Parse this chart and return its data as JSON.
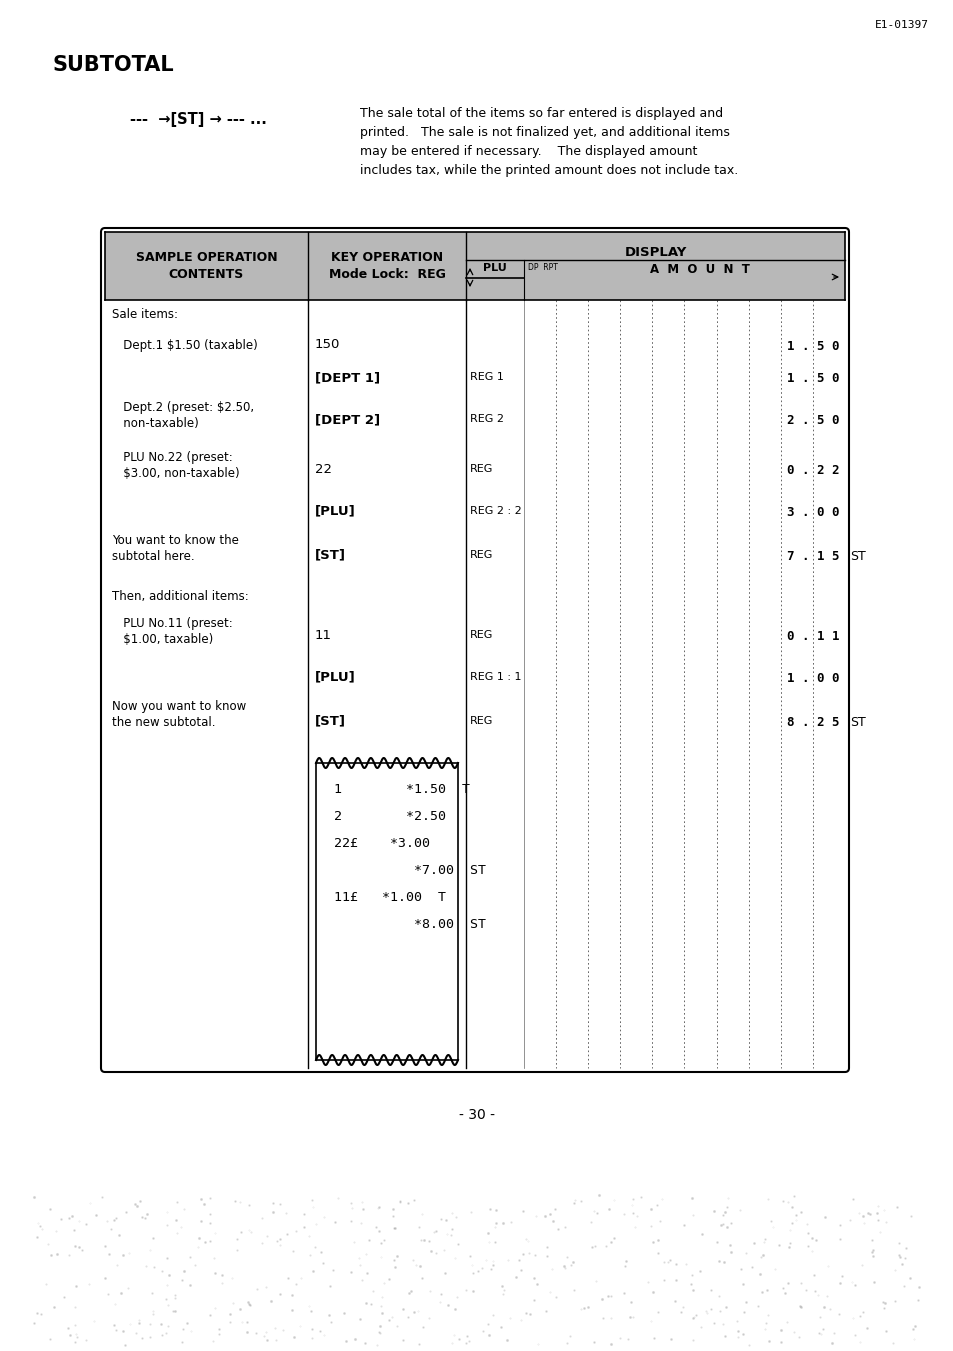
{
  "page_ref": "E1-01397",
  "title": "SUBTOTAL",
  "flow_text": "---  →[ST] → --- ...",
  "description_lines": [
    "The sale total of the items so far entered is displayed and",
    "printed.   The sale is not finalized yet, and additional items",
    "may be entered if necessary.    The displayed amount",
    "includes tax, while the printed amount does not include tax."
  ],
  "header_col1": "SAMPLE OPERATION\nCONTENTS",
  "header_col2": "KEY OPERATION\nMode Lock:  REG",
  "header_col3": "DISPLAY",
  "header_plu": "PLU",
  "header_amount": "A  M  O  U  N  T",
  "header_dp_rpt": "DP  RPT",
  "bg_color": "#b8b8b8",
  "receipt_lines": [
    "1        *1.50  T",
    "2        *2.50",
    "22£    *3.00",
    "          *7.00  ST",
    "11£   *1.00  T",
    "          *8.00  ST"
  ],
  "page_number": "- 30 -",
  "background_color": "#ffffff",
  "table_rows": [
    {
      "col1": "Sale items:",
      "col2": "",
      "bold2": false,
      "mode": "",
      "disp": "",
      "suffix": "",
      "multiline1": false
    },
    {
      "col1": "   Dept.1 $1.50 (taxable)",
      "col2": "150",
      "bold2": false,
      "mode": "",
      "disp": "1 . 5 0",
      "suffix": "",
      "multiline1": false
    },
    {
      "col1": "",
      "col2": "[DEPT 1]",
      "bold2": true,
      "mode": "REG 1",
      "disp": "1 . 5 0",
      "suffix": "",
      "multiline1": false
    },
    {
      "col1": "   Dept.2 (preset: $2.50,\n   non-taxable)",
      "col2": "[DEPT 2]",
      "bold2": true,
      "mode": "REG 2",
      "disp": "2 . 5 0",
      "suffix": "",
      "multiline1": true
    },
    {
      "col1": "   PLU No.22 (preset:\n   $3.00, non-taxable)",
      "col2": "22",
      "bold2": false,
      "mode": "REG",
      "disp": "0 . 2 2",
      "suffix": "",
      "multiline1": true
    },
    {
      "col1": "",
      "col2": "[PLU]",
      "bold2": true,
      "mode": "REG 2 : 2",
      "disp": "3 . 0 0",
      "suffix": "",
      "multiline1": false
    },
    {
      "col1": "You want to know the\nsubtotal here.",
      "col2": "[ST]",
      "bold2": true,
      "mode": "REG",
      "disp": "7 . 1 5",
      "suffix": "ST",
      "multiline1": true
    },
    {
      "col1": "Then, additional items:",
      "col2": "",
      "bold2": false,
      "mode": "",
      "disp": "",
      "suffix": "",
      "multiline1": false
    },
    {
      "col1": "   PLU No.11 (preset:\n   $1.00, taxable)",
      "col2": "11",
      "bold2": false,
      "mode": "REG",
      "disp": "0 . 1 1",
      "suffix": "",
      "multiline1": true
    },
    {
      "col1": "",
      "col2": "[PLU]",
      "bold2": true,
      "mode": "REG 1 : 1",
      "disp": "1 . 0 0",
      "suffix": "",
      "multiline1": false
    },
    {
      "col1": "Now you want to know\nthe new subtotal.",
      "col2": "[ST]",
      "bold2": true,
      "mode": "REG",
      "disp": "8 . 2 5",
      "suffix": "ST",
      "multiline1": true
    }
  ]
}
